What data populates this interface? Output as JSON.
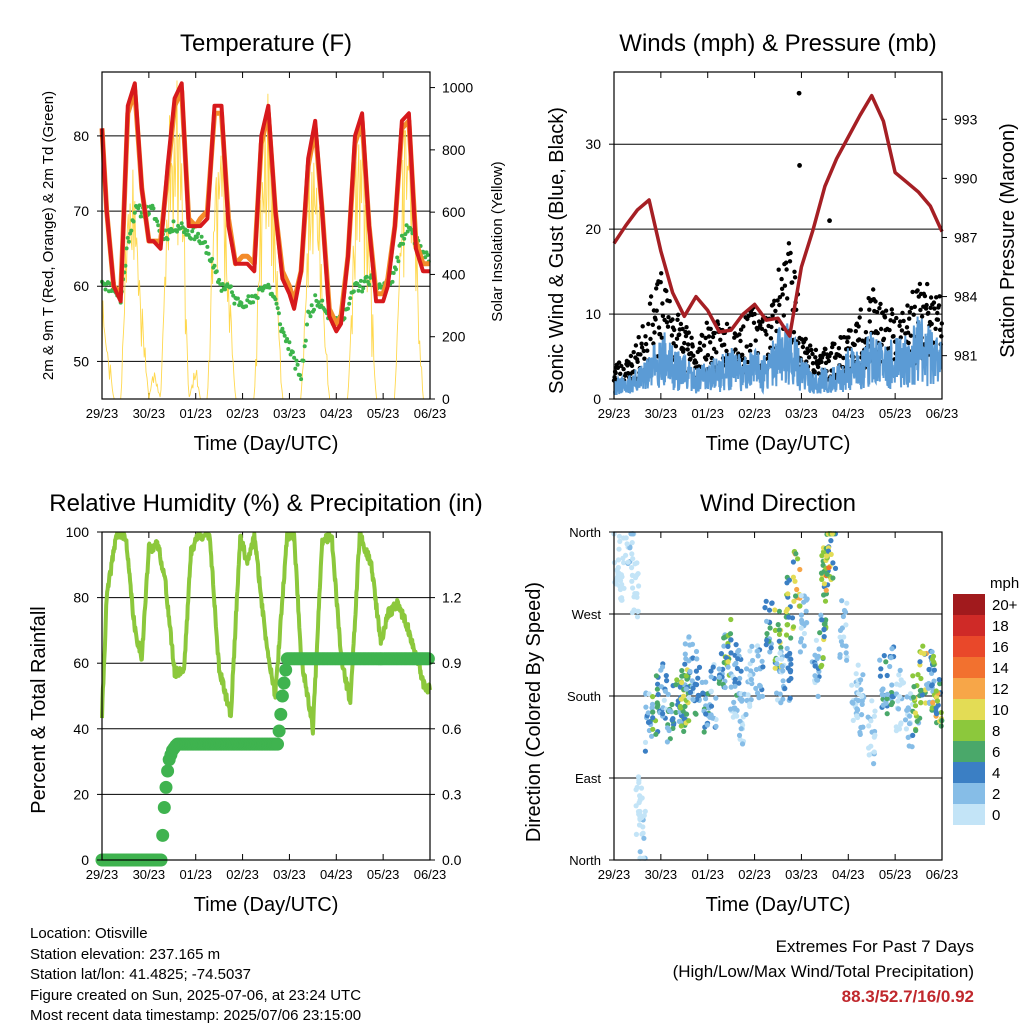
{
  "x_ticks": [
    "29/23",
    "30/23",
    "01/23",
    "02/23",
    "03/23",
    "04/23",
    "05/23",
    "06/23"
  ],
  "chart_data": [
    {
      "type": "line",
      "title": "Temperature (F)",
      "xlabel": "Time (Day/UTC)",
      "ylabel": "2m & 9m T (Red, Orange) & 2m Td (Green)",
      "ylabel_right": "Solar Insolation (Yellow)",
      "ylim": [
        45,
        88.5
      ],
      "yticks": [
        50,
        60,
        70,
        80
      ],
      "ylim_right": [
        0,
        1050
      ],
      "yticks_right": [
        0,
        200,
        400,
        600,
        800,
        1000
      ],
      "x_days": [
        0,
        0.1,
        0.25,
        0.4,
        0.55,
        0.7,
        0.85,
        1,
        1.1,
        1.25,
        1.4,
        1.55,
        1.7,
        1.85,
        2,
        2.1,
        2.25,
        2.4,
        2.55,
        2.7,
        2.85,
        3,
        3.1,
        3.25,
        3.4,
        3.55,
        3.7,
        3.85,
        4,
        4.1,
        4.25,
        4.4,
        4.55,
        4.7,
        4.85,
        5,
        5.1,
        5.25,
        5.4,
        5.55,
        5.7,
        5.85,
        6,
        6.1,
        6.25,
        6.4,
        6.55,
        6.7,
        6.85,
        7
      ],
      "series": [
        {
          "name": "2m T",
          "color": "#d7191c",
          "values": [
            81,
            70,
            60,
            58,
            84,
            87,
            73,
            66,
            66,
            65,
            76,
            85,
            87,
            68,
            68,
            68,
            69,
            84,
            84,
            68,
            63,
            63,
            63,
            62,
            80,
            84,
            70,
            61,
            59,
            57,
            62,
            77,
            82,
            70,
            56,
            54,
            55,
            64,
            80,
            83,
            68,
            58,
            58,
            60,
            68,
            82,
            83,
            65,
            62,
            62
          ]
        },
        {
          "name": "9m T",
          "color": "#f38b2a",
          "values": [
            81,
            70,
            60,
            59,
            83,
            86,
            73,
            66,
            66,
            66,
            75,
            84,
            86,
            69,
            68,
            69,
            70,
            83,
            83,
            69,
            63,
            64,
            64,
            63,
            79,
            83,
            70,
            62,
            60,
            58,
            62,
            76,
            81,
            70,
            57,
            55,
            56,
            64,
            79,
            82,
            68,
            59,
            59,
            61,
            68,
            81,
            82,
            66,
            63,
            63
          ]
        },
        {
          "name": "2m Td",
          "color": "#3cb44b",
          "values": [
            61,
            60,
            60,
            58,
            66,
            70,
            70,
            70,
            70,
            67,
            67,
            68,
            68,
            67,
            67,
            66,
            65,
            62,
            60,
            60,
            58,
            58,
            58,
            58,
            60,
            60,
            58,
            54,
            52,
            50,
            48,
            56,
            58,
            58,
            56,
            55,
            56,
            57,
            60,
            60,
            61,
            60,
            60,
            60,
            62,
            66,
            68,
            66,
            64,
            64
          ]
        },
        {
          "name": "Solar Insolation",
          "color": "#ffd43b",
          "axis": "right",
          "values": [
            300,
            200,
            0,
            0,
            650,
            700,
            300,
            0,
            100,
            0,
            700,
            1000,
            800,
            0,
            100,
            0,
            0,
            700,
            900,
            400,
            0,
            0,
            0,
            0,
            650,
            900,
            500,
            0,
            0,
            0,
            0,
            600,
            850,
            400,
            0,
            0,
            0,
            0,
            650,
            900,
            500,
            0,
            0,
            0,
            0,
            750,
            950,
            500,
            0,
            0
          ]
        }
      ]
    },
    {
      "type": "scatter",
      "title": "Winds (mph) & Pressure (mb)",
      "xlabel": "Time (Day/UTC)",
      "ylabel": "Sonic Wind & Gust (Blue, Black)",
      "ylabel_right": "Station Pressure (Maroon)",
      "ylim": [
        0,
        38.5
      ],
      "yticks": [
        0,
        10,
        20,
        30
      ],
      "ylim_right": [
        978.8,
        995.4
      ],
      "yticks_right": [
        981,
        984,
        987,
        990,
        993
      ],
      "x_days": [
        0,
        0.25,
        0.5,
        0.75,
        1,
        1.25,
        1.5,
        1.75,
        2,
        2.25,
        2.5,
        2.75,
        3,
        3.25,
        3.5,
        3.75,
        4,
        4.25,
        4.5,
        4.75,
        5,
        5.25,
        5.5,
        5.75,
        6,
        6.25,
        6.5,
        6.75,
        7
      ],
      "series": [
        {
          "name": "Sonic Wind",
          "color": "#5b9bd5",
          "values": [
            2,
            2,
            3,
            4,
            7,
            5,
            4,
            3,
            4,
            4,
            5,
            4,
            5,
            4,
            7,
            8,
            4,
            3,
            3,
            3,
            5,
            5,
            7,
            5,
            6,
            6,
            8,
            7,
            6
          ]
        },
        {
          "name": "Gust",
          "color": "#000000",
          "values": [
            4,
            4,
            6,
            10,
            13,
            10,
            8,
            6,
            8,
            8,
            9,
            8,
            10,
            9,
            13,
            17,
            9,
            5,
            6,
            6,
            8,
            9,
            12,
            9,
            10,
            10,
            12,
            12,
            11
          ]
        },
        {
          "name": "Station Pressure",
          "color": "#a51f24",
          "axis": "right",
          "values": [
            986.7,
            987.6,
            988.4,
            988.9,
            986.3,
            984.2,
            983.0,
            984.0,
            983.3,
            982.2,
            982.3,
            983.1,
            983.6,
            982.8,
            982.9,
            982.0,
            985.5,
            987.4,
            989.6,
            991.0,
            992.1,
            993.2,
            994.2,
            992.9,
            990.3,
            989.8,
            989.3,
            988.6,
            987.3
          ]
        }
      ],
      "outliers": [
        {
          "x": 3.95,
          "y": 36
        },
        {
          "x": 3.96,
          "y": 27.5
        },
        {
          "x": 4.6,
          "y": 21
        }
      ]
    },
    {
      "type": "line",
      "title": "Relative Humidity (%) & Precipitation (in)",
      "xlabel": "Time (Day/UTC)",
      "ylabel": "Percent & Total Rainfall",
      "ylim": [
        0,
        100
      ],
      "yticks": [
        0,
        20,
        40,
        60,
        80,
        100
      ],
      "ylim_right": [
        0,
        1.5
      ],
      "yticks_right": [
        "0.0",
        "0.3",
        "0.6",
        "0.9",
        "1.2"
      ],
      "rh_color": "#8cc83c",
      "precip_color": "#3fb34f",
      "rh_x": [
        0,
        0.1,
        0.3,
        0.5,
        0.7,
        0.85,
        1,
        1.2,
        1.35,
        1.55,
        1.75,
        1.9,
        2.05,
        2.3,
        2.5,
        2.75,
        2.95,
        3.1,
        3.25,
        3.5,
        3.7,
        3.95,
        4.1,
        4.25,
        4.5,
        4.7,
        4.9,
        5.1,
        5.3,
        5.5,
        5.75,
        5.95,
        6.1,
        6.3,
        6.5,
        6.7,
        6.9,
        7
      ],
      "rh_values": [
        44,
        80,
        99,
        99,
        70,
        62,
        95,
        96,
        85,
        57,
        58,
        94,
        99,
        99,
        58,
        44,
        99,
        90,
        99,
        67,
        50,
        99,
        99,
        62,
        40,
        97,
        99,
        62,
        48,
        99,
        90,
        66,
        75,
        78,
        72,
        62,
        52,
        52
      ],
      "precip_x": [
        0,
        0.4,
        0.8,
        1.1,
        1.28,
        1.3,
        1.35,
        1.42,
        1.5,
        1.6,
        1.75,
        2.2,
        2.8,
        3.55,
        3.75,
        3.8,
        3.85,
        3.95,
        4.3,
        5,
        6,
        7
      ],
      "precip_values": [
        0,
        0,
        0,
        0,
        0,
        0.15,
        0.3,
        0.45,
        0.5,
        0.53,
        0.53,
        0.53,
        0.53,
        0.53,
        0.53,
        0.63,
        0.75,
        0.92,
        0.92,
        0.92,
        0.92,
        0.92
      ]
    },
    {
      "type": "scatter",
      "title": "Wind Direction",
      "xlabel": "Time (Day/UTC)",
      "ylabel": "Direction (Colored By Speed)",
      "ylim": [
        0,
        360
      ],
      "yticks": [
        {
          "value": 0,
          "label": "North"
        },
        {
          "value": 90,
          "label": "East"
        },
        {
          "value": 180,
          "label": "South"
        },
        {
          "value": 270,
          "label": "West"
        },
        {
          "value": 360,
          "label": "North"
        }
      ],
      "colorbar": {
        "unit": "mph",
        "labels": [
          "20+",
          "18",
          "16",
          "14",
          "12",
          "10",
          "8",
          "6",
          "4",
          "2",
          "0"
        ],
        "colors": [
          "#a11a1d",
          "#cf2a27",
          "#e9482a",
          "#f2712f",
          "#f7a648",
          "#e3dc55",
          "#8cc83c",
          "#4aa86a",
          "#3b7fc4",
          "#86bde7",
          "#c3e4f7"
        ]
      },
      "x_days": [
        0.05,
        0.2,
        0.35,
        0.45,
        0.55,
        0.6,
        0.75,
        0.9,
        1.05,
        1.2,
        1.4,
        1.5,
        1.55,
        1.6,
        1.75,
        1.95,
        2.1,
        2.3,
        2.45,
        2.55,
        2.65,
        2.75,
        2.9,
        3.1,
        3.3,
        3.5,
        3.55,
        3.7,
        3.75,
        3.9,
        4.05,
        4.3,
        4.45,
        4.5,
        4.55,
        4.65,
        4.9,
        5.15,
        5.25,
        5.5,
        5.75,
        5.9,
        6.1,
        6.3,
        6.45,
        6.6,
        6.75,
        6.85,
        6.95
      ],
      "directions": [
        330,
        320,
        340,
        300,
        60,
        20,
        150,
        170,
        190,
        160,
        185,
        170,
        180,
        210,
        195,
        175,
        180,
        220,
        230,
        185,
        210,
        150,
        200,
        200,
        250,
        240,
        200,
        210,
        280,
        310,
        260,
        210,
        240,
        310,
        330,
        340,
        250,
        180,
        170,
        140,
        190,
        200,
        175,
        150,
        170,
        200,
        200,
        190,
        180
      ],
      "speeds": [
        1,
        1,
        2,
        1,
        1,
        2,
        4,
        8,
        4,
        6,
        7,
        9,
        10,
        4,
        6,
        5,
        4,
        6,
        8,
        3,
        5,
        3,
        3,
        4,
        6,
        9,
        3,
        5,
        9,
        11,
        3,
        4,
        8,
        9,
        12,
        10,
        3,
        2,
        3,
        2,
        6,
        6,
        2,
        3,
        8,
        10,
        4,
        10,
        10
      ]
    }
  ],
  "info": {
    "location": "Location: Otisville",
    "elevation": "Station elevation: 237.165 m",
    "latlon": "Station lat/lon: 41.4825; -74.5037",
    "created": "Figure created on Sun, 2025-07-06, at 23:24 UTC",
    "timestamp": "Most recent data timestamp: 2025/07/06 23:15:00"
  },
  "extremes": {
    "heading": "Extremes For Past 7 Days",
    "subheading": "(High/Low/Max Wind/Total Precipitation)",
    "values": "88.3/52.7/16/0.92"
  }
}
